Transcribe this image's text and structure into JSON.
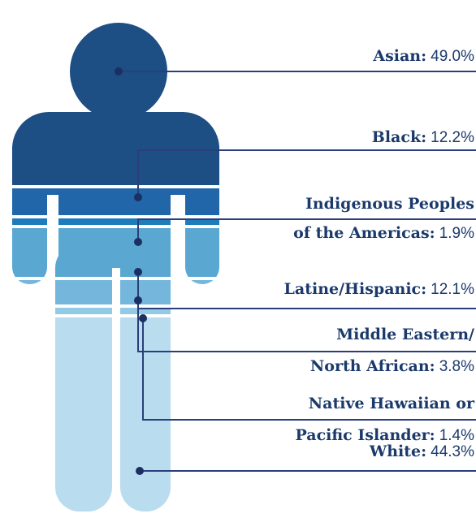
{
  "chart_data": {
    "type": "pictogram",
    "categories": [
      [
        "Asian:"
      ],
      [
        "Black:"
      ],
      [
        "Indigenous Peoples",
        "of the Americas:"
      ],
      [
        "Latine/Hispanic:"
      ],
      [
        "Middle Eastern/",
        "North African:"
      ],
      [
        "Native Hawaiian or",
        "Pacific Islander:"
      ],
      [
        "White:"
      ]
    ],
    "values": [
      49,
      12.2,
      1.9,
      12.1,
      3.8,
      1.4,
      44.3
    ],
    "value_labels": [
      "49.0%",
      "12.2%",
      "1.9%",
      "12.1%",
      "3.8%",
      "1.4%",
      "44.3%"
    ],
    "colors": [
      "#1d4e84",
      "#2066a8",
      "#1f7cbb",
      "#5aa7d2",
      "#74b6dc",
      "#93cbe7",
      "#b9dcef"
    ]
  }
}
